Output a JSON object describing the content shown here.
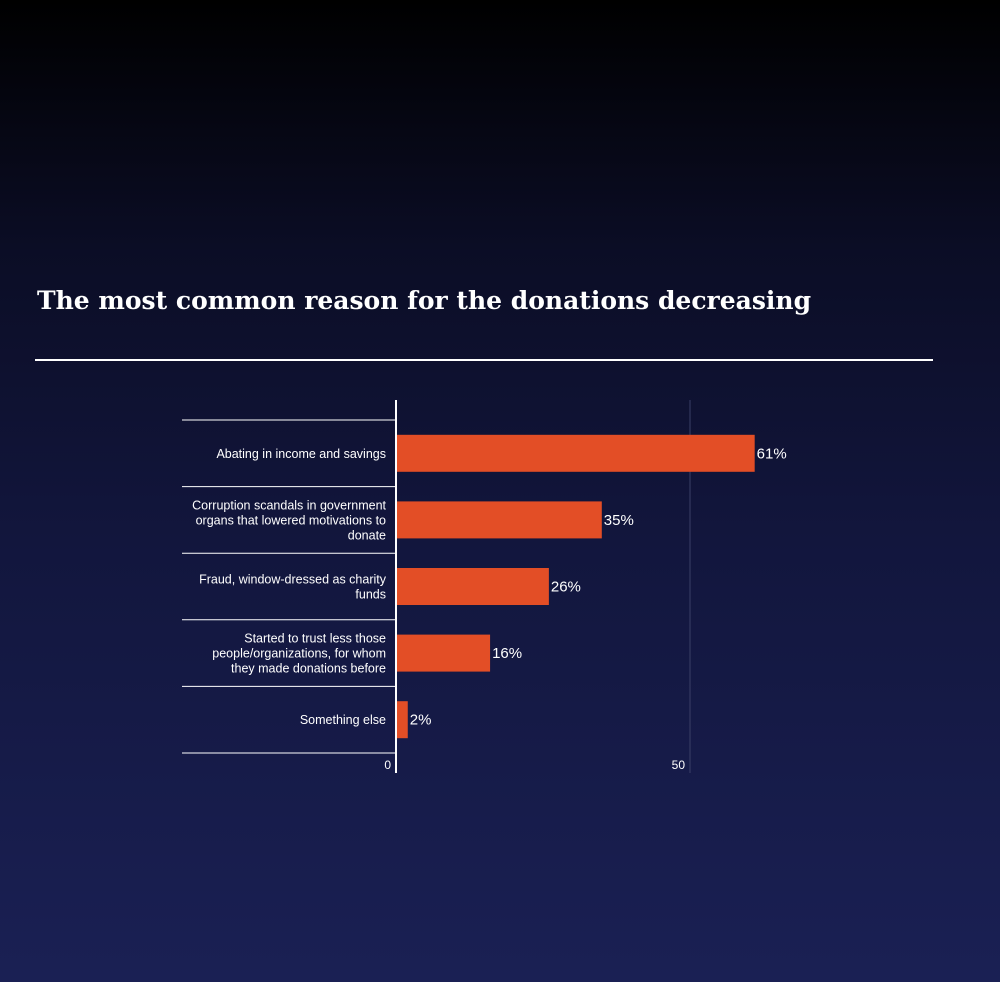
{
  "title": "The most common reason for the donations decreasing",
  "chart_data": {
    "type": "bar",
    "orientation": "horizontal",
    "categories": [
      "Abating in income and savings",
      "Corruption scandals in government organs that lowered motivations to donate",
      "Fraud, window-dressed as charity funds",
      "Started to trust less those people/organizations, for whom they made donations before",
      "Something else"
    ],
    "category_lines": [
      [
        "Abating in income and savings"
      ],
      [
        "Corruption scandals in government",
        "organs that lowered motivations to",
        "donate"
      ],
      [
        "Fraud, window-dressed as charity",
        "funds"
      ],
      [
        "Started to trust less those",
        "people/organizations, for whom",
        "they made donations before"
      ],
      [
        "Something else"
      ]
    ],
    "values": [
      61,
      35,
      26,
      16,
      2
    ],
    "value_labels": [
      "61%",
      "35%",
      "26%",
      "16%",
      "2%"
    ],
    "xticks": [
      0,
      50
    ],
    "xtick_labels": [
      "0",
      "50"
    ],
    "xlim": [
      0,
      75
    ],
    "bar_color": "#e34e26",
    "grid": "vertical gridline at 50",
    "title": "The most common reason for the donations decreasing",
    "xlabel": "",
    "ylabel": ""
  }
}
